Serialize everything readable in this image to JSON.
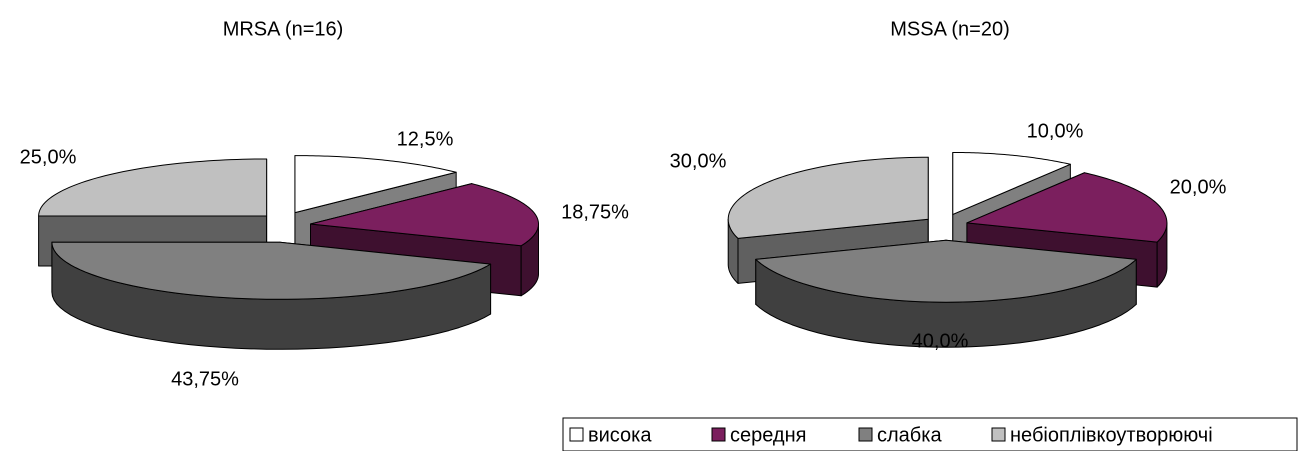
{
  "chart_data": [
    {
      "type": "pie",
      "title": "MRSA (n=16)",
      "categories": [
        "висока",
        "середня",
        "слабка",
        "небіоплівкоутворюючі"
      ],
      "values": [
        12.5,
        18.75,
        43.75,
        25
      ],
      "value_labels": [
        "12,5%",
        "18,75%",
        "43,75%",
        "25,0%"
      ],
      "colors": [
        "#ffffff",
        "#7b1f5e",
        "#808080",
        "#c0c0c0"
      ],
      "legend": "bottom-right"
    },
    {
      "type": "pie",
      "title": "MSSA (n=20)",
      "categories": [
        "висока",
        "середня",
        "слабка",
        "небіоплівкоутворюючі"
      ],
      "values": [
        10,
        20,
        40,
        30
      ],
      "value_labels": [
        "10,0%",
        "20,0%",
        "40,0%",
        "30,0%"
      ],
      "colors": [
        "#ffffff",
        "#7b1f5e",
        "#808080",
        "#c0c0c0"
      ],
      "legend": "bottom-right"
    }
  ]
}
